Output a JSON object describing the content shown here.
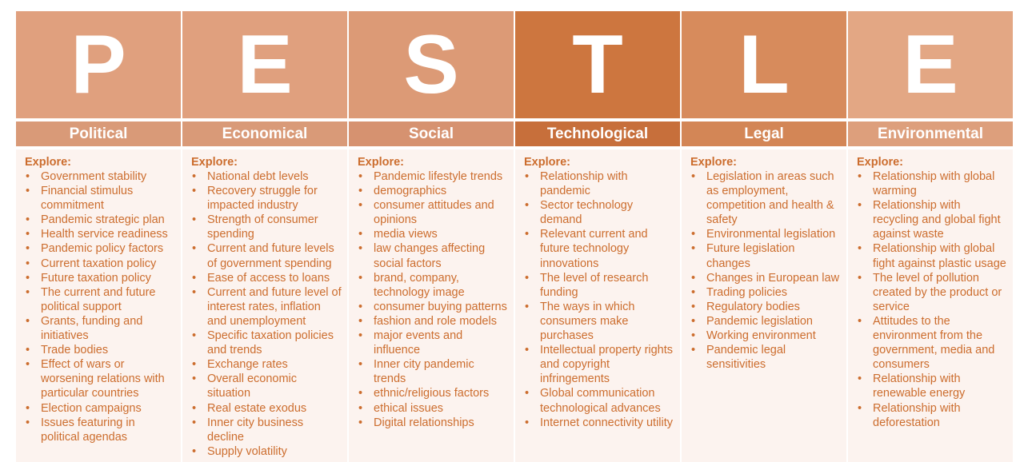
{
  "columns": [
    {
      "letter": "P",
      "title": "Political",
      "explore": "Explore:",
      "letter_color": "#e0a07e",
      "title_color": "#d99a78",
      "items": [
        "Government stability",
        "Financial stimulus commitment",
        "Pandemic strategic plan",
        "Health service readiness",
        "Pandemic policy factors",
        "Current taxation policy",
        "Future taxation policy",
        "The current and future political support",
        "Grants, funding and initiatives",
        "Trade bodies",
        "Effect of wars or worsening relations with particular countries",
        "Election campaigns",
        "Issues featuring in political agendas"
      ]
    },
    {
      "letter": "E",
      "title": "Economical",
      "explore": "Explore:",
      "letter_color": "#e0a07e",
      "title_color": "#d99a78",
      "items": [
        "National debt levels",
        "Recovery struggle for impacted industry",
        "Strength of consumer spending",
        "Current and future levels of government spending",
        "Ease of access to loans",
        "Current and future level of interest rates, inflation and unemployment",
        "Specific taxation policies and trends",
        "Exchange rates",
        "Overall economic situation",
        "Real estate exodus",
        "Inner city business decline",
        "Supply volatility"
      ]
    },
    {
      "letter": "S",
      "title": "Social",
      "explore": "Explore:",
      "letter_color": "#dc9a76",
      "title_color": "#d69270",
      "items": [
        "Pandemic lifestyle trends",
        "demographics",
        "consumer attitudes and opinions",
        "media views",
        "law changes affecting social factors",
        "brand, company, technology image",
        "consumer buying patterns",
        "fashion and role models",
        "major events and influence",
        "Inner city pandemic trends",
        "ethnic/religious factors",
        "ethical issues",
        "Digital relationships"
      ]
    },
    {
      "letter": "T",
      "title": "Technological",
      "explore": "Explore:",
      "letter_color": "#cd763f",
      "title_color": "#c76f3b",
      "items": [
        "Relationship with pandemic",
        "Sector technology demand",
        "Relevant current and future technology innovations",
        "The level of research funding",
        "The ways in which consumers make purchases",
        "Intellectual property rights and copyright infringements",
        "Global communication technological advances",
        "Internet connectivity utility"
      ]
    },
    {
      "letter": "L",
      "title": "Legal",
      "explore": "Explore:",
      "letter_color": "#d78b5c",
      "title_color": "#d38656",
      "items": [
        "Legislation in areas such as employment, competition and health & safety",
        "Environmental legislation",
        "Future legislation changes",
        "Changes in European law",
        "Trading policies",
        "Regulatory bodies",
        "Pandemic legislation",
        "Working environment",
        "Pandemic legal sensitivities"
      ]
    },
    {
      "letter": "E",
      "title": "Environmental",
      "explore": "Explore:",
      "letter_color": "#e3a784",
      "title_color": "#dd9f7c",
      "items": [
        "Relationship with global warming",
        "Relationship with recycling and global fight against waste",
        "Relationship with global fight against plastic usage",
        "The level of pollution created by the product or service",
        "Attitudes to the environment from the government, media and consumers",
        "Relationship with renewable energy",
        "Relationship with deforestation"
      ]
    }
  ]
}
